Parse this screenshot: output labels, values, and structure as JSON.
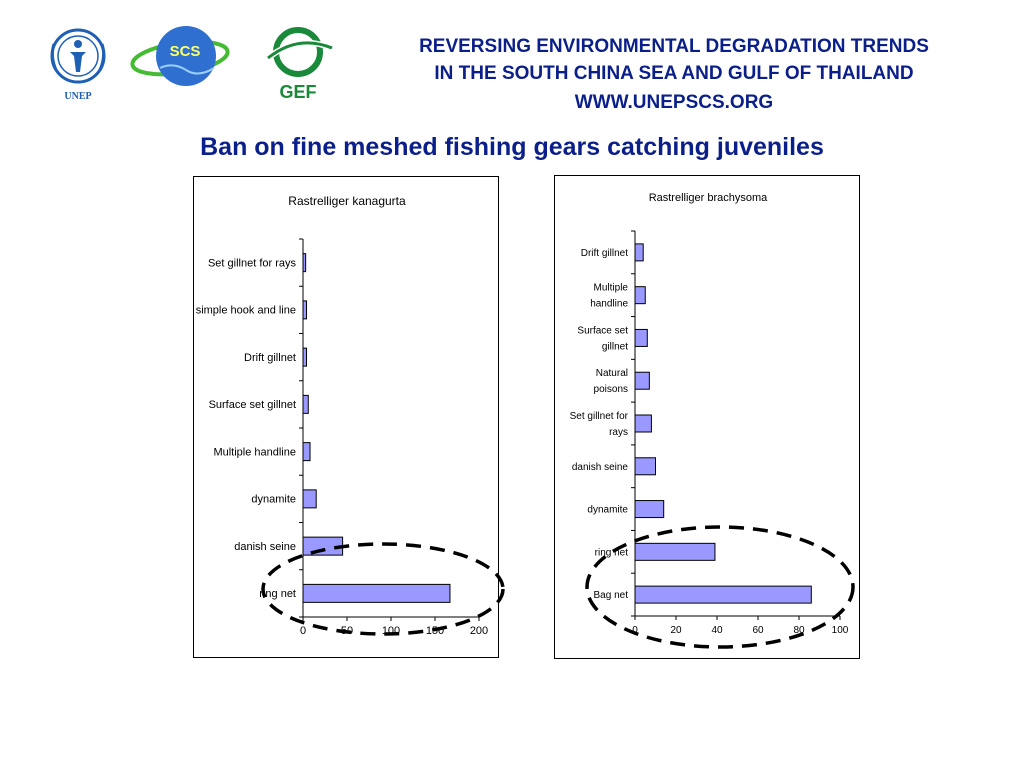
{
  "header": {
    "line1": "REVERSING ENVIRONMENTAL DEGRADATION TRENDS",
    "line2": "IN THE SOUTH CHINA SEA AND GULF OF THAILAND",
    "line3": "WWW.UNEPSCS.ORG"
  },
  "logos": {
    "unep": "UNEP",
    "scs": "SCS",
    "gef": "GEF"
  },
  "slide_title": "Ban on fine meshed fishing gears catching juveniles",
  "colors": {
    "title_blue": "#0b1f8a",
    "bar_fill": "#9999ff",
    "bar_stroke": "#000000"
  },
  "chart_data": [
    {
      "type": "bar",
      "orientation": "horizontal",
      "title": "Rastrelliger kanagurta",
      "categories": [
        "Set gillnet for rays",
        "simple hook and line",
        "Drift gillnet",
        "Surface set gillnet",
        "Multiple handline",
        "dynamite",
        "danish seine",
        "ring net"
      ],
      "values": [
        3,
        4,
        4,
        6,
        8,
        15,
        45,
        167
      ],
      "xlim": [
        0,
        200
      ],
      "xticks": [
        "0",
        "50",
        "100",
        "150",
        "200"
      ],
      "xlabel": "",
      "ylabel": "",
      "grid": false,
      "highlight": "ring net"
    },
    {
      "type": "bar",
      "orientation": "horizontal",
      "title": "Rastrelliger brachysoma",
      "categories": [
        "Drift gillnet",
        "Multiple handline",
        "Surface set gillnet",
        "Natural poisons",
        "Set gillnet for rays",
        "danish seine",
        "dynamite",
        "ring net",
        "Bag net"
      ],
      "category_lines": [
        [
          "Drift gillnet"
        ],
        [
          "Multiple",
          "handline"
        ],
        [
          "Surface set",
          "gillnet"
        ],
        [
          "Natural",
          "poisons"
        ],
        [
          "Set gillnet for",
          "rays"
        ],
        [
          "danish seine"
        ],
        [
          "dynamite"
        ],
        [
          "ring net"
        ],
        [
          "Bag net"
        ]
      ],
      "values": [
        4,
        5,
        6,
        7,
        8,
        10,
        14,
        39,
        86
      ],
      "xlim": [
        0,
        100
      ],
      "xticks": [
        "0",
        "20",
        "40",
        "60",
        "80",
        "100"
      ],
      "xlabel": "",
      "ylabel": "",
      "grid": false,
      "highlight": "ring net, Bag net"
    }
  ]
}
